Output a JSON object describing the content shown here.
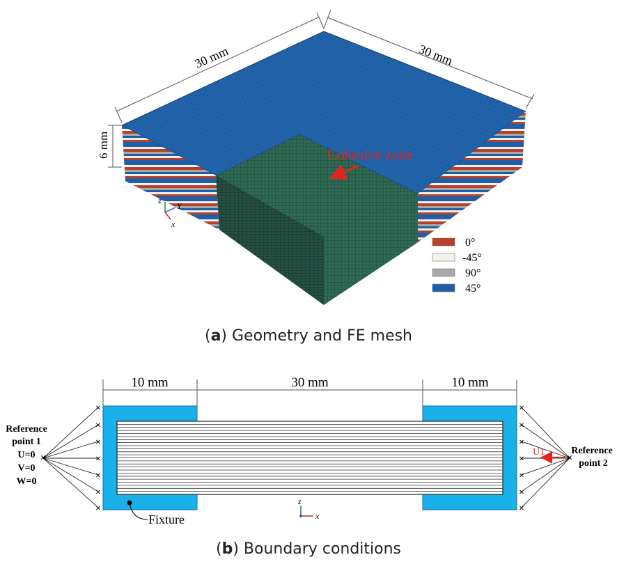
{
  "panel_a": {
    "dim_left_top": "30 mm",
    "dim_right_top": "30 mm",
    "dim_height": "6 mm",
    "cohesive_label": "Cohesive zone",
    "axes": {
      "z": "z",
      "y": "Y",
      "x": "x"
    },
    "legend": [
      {
        "label": "0°",
        "color": "#b5412d"
      },
      {
        "label": "-45°",
        "color": "#f2f2ea"
      },
      {
        "label": "90°",
        "color": "#a8a8a8"
      },
      {
        "label": "45°",
        "color": "#1f5fa6"
      }
    ],
    "caption_letter": "a",
    "caption_text": " Geometry and FE mesh"
  },
  "panel_b": {
    "dim_left": "10 mm",
    "dim_mid": "30 mm",
    "dim_right": "10 mm",
    "ref1_line1": "Reference",
    "ref1_line2": "point 1",
    "bc_u": "U=0",
    "bc_v": "V=0",
    "bc_w": "W=0",
    "ref2_line1": "Reference",
    "ref2_line2": "point 2",
    "load_label": "U1",
    "fixture_label": "Fixture",
    "axes": {
      "z": "z",
      "x": "x"
    },
    "fixture_color": "#1ab0ea",
    "caption_letter": "b",
    "caption_text": " Boundary conditions"
  }
}
